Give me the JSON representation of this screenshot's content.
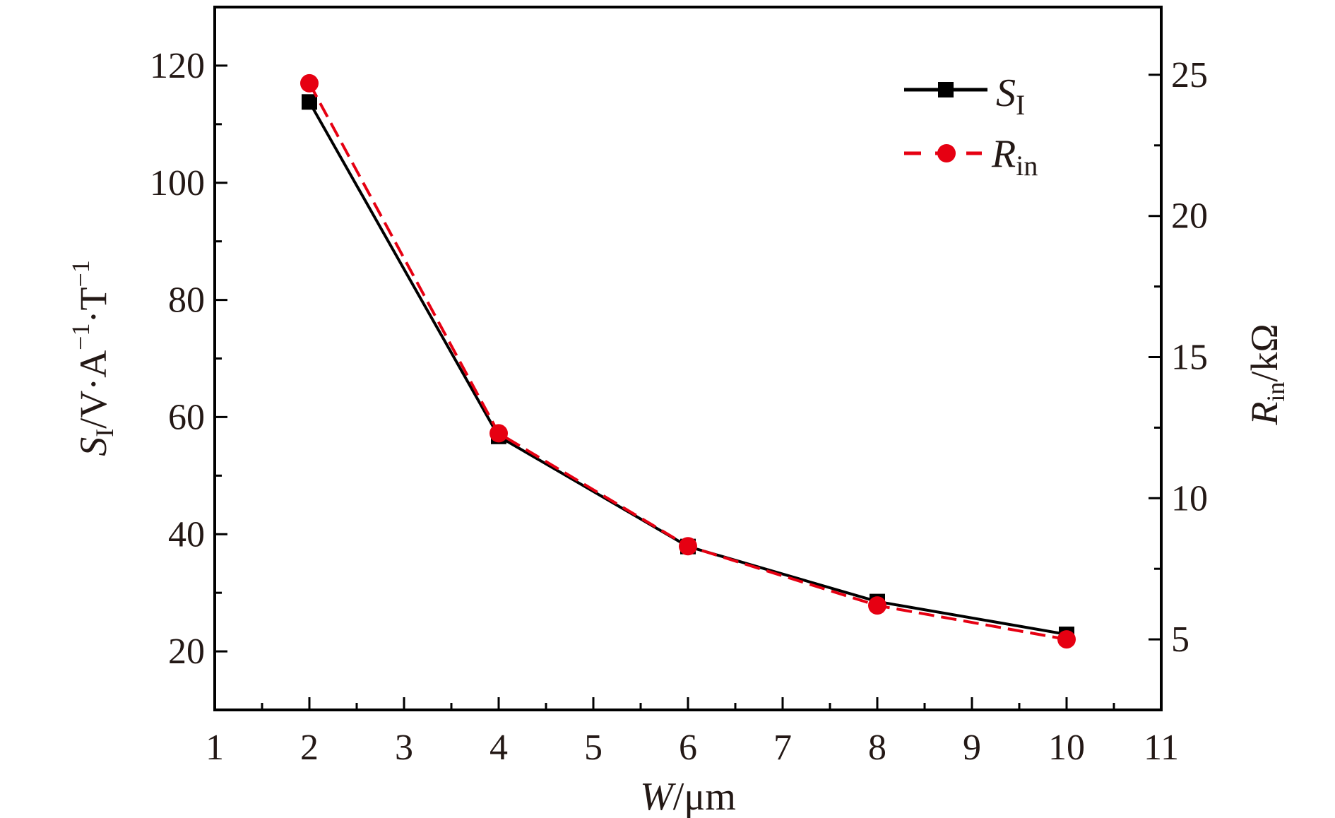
{
  "chart_data": {
    "type": "line",
    "xlabel": "W/μm",
    "ylabel_left": "S_I/V·A^−1·T^−1",
    "ylabel_right": "R_in/kΩ",
    "xlim": [
      1,
      11
    ],
    "ylim_left": [
      10,
      130
    ],
    "ylim_right": [
      2.5,
      27.4
    ],
    "xticks": [
      1,
      2,
      3,
      4,
      5,
      6,
      7,
      8,
      9,
      10,
      11
    ],
    "yticks_left": [
      20,
      40,
      60,
      80,
      100,
      120
    ],
    "yticks_right": [
      5,
      10,
      15,
      20,
      25
    ],
    "grid": false,
    "legend_position": "top-right",
    "x": [
      2,
      4,
      6,
      8,
      10
    ],
    "series": [
      {
        "name": "S_I",
        "axis": "left",
        "color": "#000000",
        "dash": "solid",
        "marker": "square",
        "values": [
          113.8,
          56.7,
          37.9,
          28.5,
          22.9
        ]
      },
      {
        "name": "R_in",
        "axis": "right",
        "color": "#e60012",
        "dash": "dashed",
        "marker": "circle",
        "values": [
          24.7,
          12.3,
          8.3,
          6.2,
          5.0
        ]
      }
    ]
  }
}
